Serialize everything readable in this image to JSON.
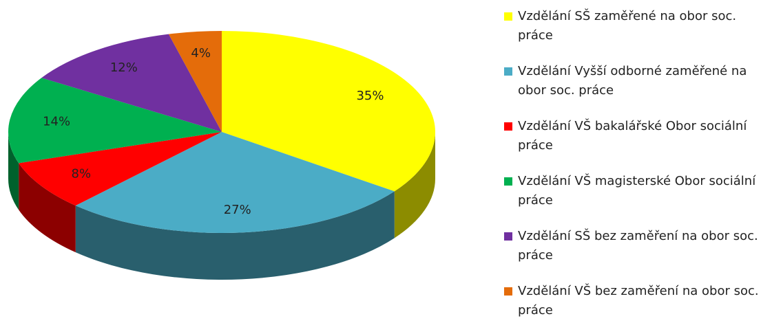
{
  "chart_data": {
    "type": "pie3d",
    "categories": [
      "Vzdělání SŠ zaměřené na obor soc. práce",
      "Vzdělání Vyšší odborné zaměřené na obor soc. práce",
      "Vzdělání VŠ bakalářské Obor sociální práce",
      "Vzdělání VŠ magisterské Obor sociální práce",
      "Vzdělání SŠ bez zaměření na obor soc. práce",
      "Vzdělání VŠ bez zaměření na obor soc. práce"
    ],
    "values": [
      35,
      27,
      8,
      14,
      12,
      4
    ],
    "value_labels": [
      "35%",
      "27%",
      "8%",
      "14%",
      "12%",
      "4%"
    ],
    "colors": [
      "#ffff00",
      "#4bacc6",
      "#ff0000",
      "#00b050",
      "#7030a0",
      "#e46c0a"
    ],
    "legend": "right"
  }
}
